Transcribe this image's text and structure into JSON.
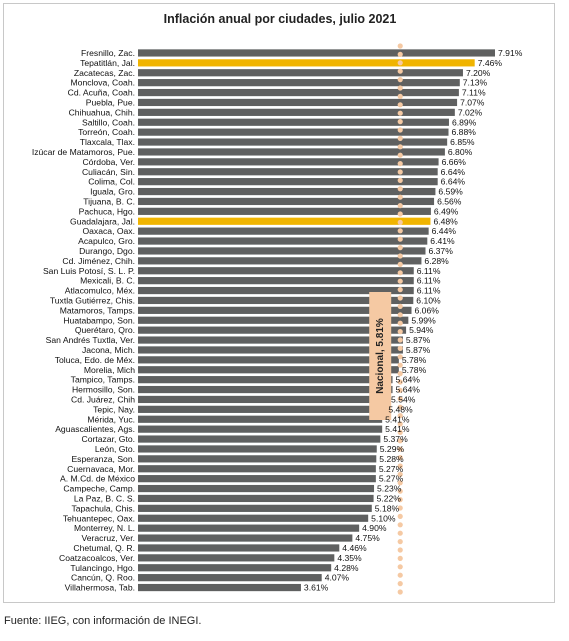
{
  "chart_data": {
    "type": "bar",
    "orientation": "horizontal",
    "title": "Inflación anual por ciudades, julio 2021",
    "categories": [
      "Fresnillo, Zac.",
      "Tepatitlán, Jal.",
      "Zacatecas, Zac.",
      "Monclova, Coah.",
      "Cd. Acuña, Coah.",
      "Puebla, Pue.",
      "Chihuahua, Chih.",
      "Saltillo, Coah.",
      "Torreón, Coah.",
      "Tlaxcala, Tlax.",
      "Izúcar de Matamoros, Pue.",
      "Córdoba, Ver.",
      "Culiacán, Sin.",
      "Colima, Col.",
      "Iguala, Gro.",
      "Tijuana, B. C.",
      "Pachuca, Hgo.",
      "Guadalajara, Jal.",
      "Oaxaca, Oax.",
      "Acapulco, Gro.",
      "Durango, Dgo.",
      "Cd. Jiménez, Chih.",
      "San Luis Potosí, S. L. P.",
      "Mexicali, B. C.",
      "Atlacomulco, Méx.",
      "Tuxtla Gutiérrez, Chis.",
      "Matamoros, Tamps.",
      "Huatabampo, Son.",
      "Querétaro, Qro.",
      "San Andrés Tuxtla, Ver.",
      "Jacona, Mich.",
      "Toluca, Edo. de Méx.",
      "Morelia, Mich",
      "Tampico, Tamps.",
      "Hermosillo, Son.",
      "Cd. Juárez, Chih",
      "Tepic, Nay.",
      "Mérida, Yuc.",
      "Aguascalientes, Ags.",
      "Cortazar, Gto.",
      "León, Gto.",
      "Esperanza, Son.",
      "Cuernavaca, Mor.",
      "A. M.Cd. de México",
      "Campeche, Camp.",
      "La Paz, B. C. S.",
      "Tapachula, Chis.",
      "Tehuantepec, Oax.",
      "Monterrey, N. L.",
      "Veracruz, Ver.",
      "Chetumal, Q. R.",
      "Coatzacoalcos, Ver.",
      "Tulancingo, Hgo.",
      "Cancún, Q. Roo.",
      "Villahermosa, Tab."
    ],
    "values": [
      7.91,
      7.46,
      7.2,
      7.13,
      7.11,
      7.07,
      7.02,
      6.89,
      6.88,
      6.85,
      6.8,
      6.66,
      6.64,
      6.64,
      6.59,
      6.56,
      6.49,
      6.48,
      6.44,
      6.41,
      6.37,
      6.28,
      6.11,
      6.11,
      6.11,
      6.1,
      6.06,
      5.99,
      5.94,
      5.87,
      5.87,
      5.78,
      5.78,
      5.64,
      5.64,
      5.54,
      5.48,
      5.41,
      5.41,
      5.37,
      5.29,
      5.28,
      5.27,
      5.27,
      5.23,
      5.22,
      5.18,
      5.1,
      4.9,
      4.75,
      4.46,
      4.35,
      4.28,
      4.07,
      3.61
    ],
    "value_labels": [
      "7.91%",
      "7.46%",
      "7.20%",
      "7.13%",
      "7.11%",
      "7.07%",
      "7.02%",
      "6.89%",
      "6.88%",
      "6.85%",
      "6.80%",
      "6.66%",
      "6.64%",
      "6.64%",
      "6.59%",
      "6.56%",
      "6.49%",
      "6.48%",
      "6.44%",
      "6.41%",
      "6.37%",
      "6.28%",
      "6.11%",
      "6.11%",
      "6.11%",
      "6.10%",
      "6.06%",
      "5.99%",
      "5.94%",
      "5.87%",
      "5.87%",
      "5.78%",
      "5.78%",
      "5.64%",
      "5.64%",
      "5.54%",
      "5.48%",
      "5.41%",
      "5.41%",
      "5.37%",
      "5.29%",
      "5.28%",
      "5.27%",
      "5.27%",
      "5.23%",
      "5.22%",
      "5.18%",
      "5.10%",
      "4.90%",
      "4.75%",
      "4.46%",
      "4.35%",
      "4.28%",
      "4.07%",
      "3.61%"
    ],
    "highlighted": [
      "Tepatitlán, Jal.",
      "Guadalajara, Jal."
    ],
    "reference_line": {
      "label": "Nacional, 5.81%",
      "value": 5.81
    },
    "xlim": [
      0,
      7.91
    ],
    "grid": false,
    "legend": "none",
    "colors": {
      "bar": "#5f6060",
      "highlight": "#f0b400",
      "reference": "#f5c9a3"
    }
  },
  "footer": {
    "source": "Fuente: IIEG, con información de INEGI."
  }
}
